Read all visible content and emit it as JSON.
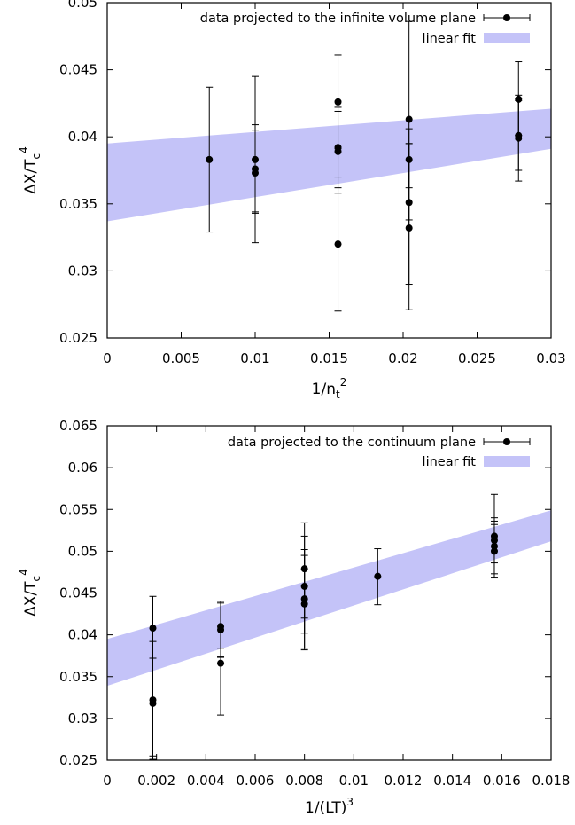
{
  "chart_data": [
    {
      "type": "scatter",
      "xlim": [
        0,
        0.03
      ],
      "ylim": [
        0.025,
        0.05
      ],
      "x_ticks": [
        "0",
        "0.005",
        "0.01",
        "0.015",
        "0.02",
        "0.025",
        "0.03"
      ],
      "y_ticks": [
        "0.025",
        "0.03",
        "0.035",
        "0.04",
        "0.045",
        "0.05"
      ],
      "xlabel": {
        "base": "1/n",
        "sub": "t",
        "sup": "2"
      },
      "ylabel": {
        "base": "ΔX/T",
        "sub": "c",
        "sup": "4"
      },
      "legend_position": "top-right",
      "series": [
        {
          "name": "data projected to the infinite volume plane",
          "points": [
            {
              "x": 0.0069,
              "y": 0.0383,
              "lo": 0.0329,
              "hi": 0.0437
            },
            {
              "x": 0.01,
              "y": 0.0383,
              "lo": 0.0321,
              "hi": 0.0445
            },
            {
              "x": 0.01,
              "y": 0.0376,
              "lo": 0.0343,
              "hi": 0.0409
            },
            {
              "x": 0.01,
              "y": 0.0373,
              "lo": 0.0344,
              "hi": 0.0405
            },
            {
              "x": 0.0156,
              "y": 0.0426,
              "lo": 0.0391,
              "hi": 0.0461
            },
            {
              "x": 0.0156,
              "y": 0.0392,
              "lo": 0.0362,
              "hi": 0.0422
            },
            {
              "x": 0.0156,
              "y": 0.0389,
              "lo": 0.0358,
              "hi": 0.0419
            },
            {
              "x": 0.0156,
              "y": 0.032,
              "lo": 0.027,
              "hi": 0.037
            },
            {
              "x": 0.0204,
              "y": 0.0413,
              "lo": 0.0338,
              "hi": 0.0486
            },
            {
              "x": 0.0204,
              "y": 0.0383,
              "lo": 0.0362,
              "hi": 0.0406
            },
            {
              "x": 0.0204,
              "y": 0.0351,
              "lo": 0.029,
              "hi": 0.0395
            },
            {
              "x": 0.0204,
              "y": 0.0332,
              "lo": 0.0271,
              "hi": 0.0394
            },
            {
              "x": 0.0278,
              "y": 0.0428,
              "lo": 0.0401,
              "hi": 0.0456
            },
            {
              "x": 0.0278,
              "y": 0.0401,
              "lo": 0.0375,
              "hi": 0.0427
            },
            {
              "x": 0.0278,
              "y": 0.0399,
              "lo": 0.0367,
              "hi": 0.0431
            }
          ]
        },
        {
          "name": "linear fit",
          "band": {
            "x": [
              0,
              0.03
            ],
            "lower": [
              0.0337,
              0.0391
            ],
            "upper": [
              0.0395,
              0.0421
            ]
          }
        }
      ]
    },
    {
      "type": "scatter",
      "xlim": [
        0,
        0.018
      ],
      "ylim": [
        0.025,
        0.065
      ],
      "x_ticks": [
        "0",
        "0.002",
        "0.004",
        "0.006",
        "0.008",
        "0.01",
        "0.012",
        "0.014",
        "0.016",
        "0.018"
      ],
      "y_ticks": [
        "0.025",
        "0.03",
        "0.035",
        "0.04",
        "0.045",
        "0.05",
        "0.055",
        "0.06",
        "0.065"
      ],
      "xlabel": {
        "base": "1/(LT)",
        "sub": "",
        "sup": "3"
      },
      "ylabel": {
        "base": "ΔX/T",
        "sub": "c",
        "sup": "4"
      },
      "legend_position": "top-right",
      "series": [
        {
          "name": "data projected to the continuum plane",
          "points": [
            {
              "x": 0.00185,
              "y": 0.0408,
              "lo": 0.0372,
              "hi": 0.0446
            },
            {
              "x": 0.00185,
              "y": 0.0322,
              "lo": 0.0255,
              "hi": 0.0392
            },
            {
              "x": 0.00185,
              "y": 0.0318,
              "lo": 0.0251,
              "hi": 0.0372
            },
            {
              "x": 0.0046,
              "y": 0.041,
              "lo": 0.0384,
              "hi": 0.0438
            },
            {
              "x": 0.0046,
              "y": 0.0406,
              "lo": 0.0373,
              "hi": 0.044
            },
            {
              "x": 0.0046,
              "y": 0.0366,
              "lo": 0.0304,
              "hi": 0.0374
            },
            {
              "x": 0.008,
              "y": 0.0479,
              "lo": 0.042,
              "hi": 0.0534
            },
            {
              "x": 0.008,
              "y": 0.0458,
              "lo": 0.0402,
              "hi": 0.0518
            },
            {
              "x": 0.008,
              "y": 0.0443,
              "lo": 0.0384,
              "hi": 0.0502
            },
            {
              "x": 0.008,
              "y": 0.0437,
              "lo": 0.0382,
              "hi": 0.0495
            },
            {
              "x": 0.01097,
              "y": 0.047,
              "lo": 0.0436,
              "hi": 0.0503
            },
            {
              "x": 0.0157,
              "y": 0.0518,
              "lo": 0.0486,
              "hi": 0.0568
            },
            {
              "x": 0.0157,
              "y": 0.0513,
              "lo": 0.0473,
              "hi": 0.054
            },
            {
              "x": 0.0157,
              "y": 0.0506,
              "lo": 0.0469,
              "hi": 0.0536
            },
            {
              "x": 0.0157,
              "y": 0.05,
              "lo": 0.0468,
              "hi": 0.0532
            }
          ]
        },
        {
          "name": "linear fit",
          "band": {
            "x": [
              0,
              0.018
            ],
            "lower": [
              0.0339,
              0.0512
            ],
            "upper": [
              0.0395,
              0.0549
            ]
          }
        }
      ]
    }
  ],
  "colors": {
    "fit_band": "#c4c3f8",
    "points": "#000000",
    "frame": "#000000"
  }
}
